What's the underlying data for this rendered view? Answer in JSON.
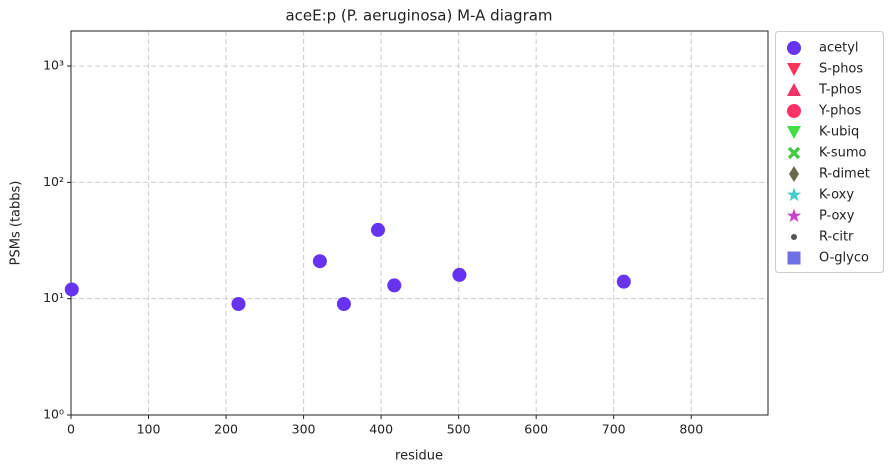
{
  "chart_data": {
    "type": "scatter",
    "title": "aceE:p (P. aeruginosa) M-A diagram",
    "x_label": "residue",
    "y_label": "PSMs (tabbs)",
    "xlim": [
      0,
      899
    ],
    "ylim": [
      1,
      2000
    ],
    "y_scale": "log",
    "xticks": [
      0,
      100,
      200,
      300,
      400,
      500,
      600,
      700,
      800
    ],
    "yticks": [
      {
        "value": 1,
        "label": "10⁰"
      },
      {
        "value": 10,
        "label": "10¹"
      },
      {
        "value": 100,
        "label": "10²"
      },
      {
        "value": 1000,
        "label": "10³"
      }
    ],
    "grid": true,
    "legend": "outside-right",
    "series": [
      {
        "name": "acetyl",
        "color": "#6633ee",
        "marker": "circle",
        "x": [
          1,
          216,
          321,
          352,
          396,
          417,
          501,
          713
        ],
        "values": [
          12,
          9,
          21,
          9,
          39,
          13,
          16,
          14
        ]
      },
      {
        "name": "S-phos",
        "color": "#ff3355",
        "marker": "triangle-down",
        "x": [],
        "values": []
      },
      {
        "name": "T-phos",
        "color": "#ee3366",
        "marker": "triangle-up",
        "x": [],
        "values": []
      },
      {
        "name": "Y-phos",
        "color": "#ff3366",
        "marker": "circle",
        "x": [],
        "values": []
      },
      {
        "name": "K-ubiq",
        "color": "#44dd44",
        "marker": "triangle-down",
        "x": [],
        "values": []
      },
      {
        "name": "K-sumo",
        "color": "#44cc44",
        "marker": "x",
        "x": [],
        "values": []
      },
      {
        "name": "R-dimet",
        "color": "#6b6b4b",
        "marker": "diamond",
        "x": [],
        "values": []
      },
      {
        "name": "K-oxy",
        "color": "#44cccc",
        "marker": "star",
        "x": [],
        "values": []
      },
      {
        "name": "P-oxy",
        "color": "#cc44cc",
        "marker": "star",
        "x": [],
        "values": []
      },
      {
        "name": "R-citr",
        "color": "#555555",
        "marker": "dot",
        "x": [],
        "values": []
      },
      {
        "name": "O-glyco",
        "color": "#6f6fe6",
        "marker": "square",
        "x": [],
        "values": []
      }
    ]
  }
}
